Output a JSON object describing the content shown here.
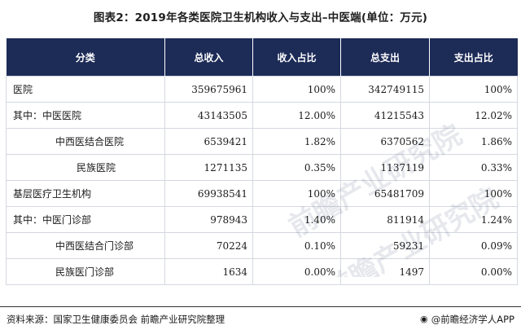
{
  "title": "图表2：2019年各类医院卫生机构收入与支出–中医端(单位：万元)",
  "table": {
    "headers": [
      "分类",
      "总收入",
      "收入占比",
      "总支出",
      "支出占比"
    ],
    "rows": [
      {
        "name": "医院",
        "indent": 1,
        "income": "359675961",
        "income_share": "100%",
        "expense": "342749115",
        "expense_share": "100%"
      },
      {
        "name": "其中：中医医院",
        "indent": 1,
        "income": "43143505",
        "income_share": "12.00%",
        "expense": "41215543",
        "expense_share": "12.02%"
      },
      {
        "name": "中西医结合医院",
        "indent": 2,
        "income": "6539421",
        "income_share": "1.82%",
        "expense": "6370562",
        "expense_share": "1.86%"
      },
      {
        "name": "民族医院",
        "indent": 3,
        "income": "1271135",
        "income_share": "0.35%",
        "expense": "1137119",
        "expense_share": "0.33%"
      },
      {
        "name": "基层医疗卫生机构",
        "indent": 1,
        "income": "69938541",
        "income_share": "100%",
        "expense": "65481709",
        "expense_share": "100%"
      },
      {
        "name": "其中：中医门诊部",
        "indent": 1,
        "income": "978943",
        "income_share": "1.40%",
        "expense": "811914",
        "expense_share": "1.24%"
      },
      {
        "name": "中西医结合门诊部",
        "indent": 2,
        "income": "70224",
        "income_share": "0.10%",
        "expense": "59231",
        "expense_share": "0.09%"
      },
      {
        "name": "民族医门诊部",
        "indent": 2,
        "income": "1634",
        "income_share": "0.00%",
        "expense": "1497",
        "expense_share": "0.00%"
      }
    ]
  },
  "footer": {
    "source": "资料来源：国家卫生健康委员会 前瞻产业研究院整理",
    "brand": "@前瞻经济学人APP",
    "brand_icon": "eye-logo-icon"
  },
  "watermark": {
    "text": "前瞻产业研究院",
    "color": "#1d2b57"
  },
  "colors": {
    "header_bg": "#1d2b57",
    "header_text": "#ffffff",
    "border": "#d4d8e0"
  }
}
